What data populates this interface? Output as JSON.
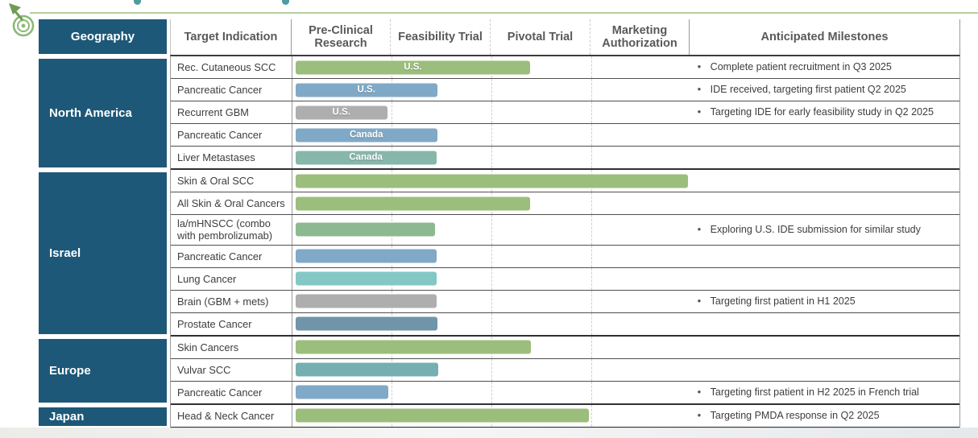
{
  "colors": {
    "navy": "#1d5878",
    "green": "#9cbe7d",
    "sage": "#8cb98f",
    "blue": "#80a9c7",
    "gray": "#aeaeae",
    "turquoise": "#83c8c4",
    "slate": "#7094aa",
    "teal": "#76afb2",
    "seagreen": "#86b7aa",
    "line_green": "#b5cf9f",
    "logo_green": "#8ab877",
    "logo_dark_green": "#6f9c54"
  },
  "milestone_bullet": "•",
  "chart_data": {
    "type": "table",
    "title": "Clinical pipeline by geography (Gantt-style phase table)",
    "columns": [
      "Geography",
      "Target Indication",
      "Pre-Clinical Research",
      "Feasibility Trial",
      "Pivotal Trial",
      "Marketing Authorization",
      "Anticipated Milestones"
    ],
    "phase_scale": [
      "Pre-Clinical Research",
      "Feasibility Trial",
      "Pivotal Trial",
      "Marketing Authorization"
    ],
    "progress_note": "progress is measured in phase units: 0-1 Pre-Clinical, 1-2 Feasibility, 2-3 Pivotal, 3-4 Marketing Authorization",
    "rows": [
      {
        "geography": "North America",
        "indication": "Rec. Cutaneous SCC",
        "bar_label": "U.S.",
        "color": "green",
        "progress": 2.39,
        "milestone": "Complete patient recruitment in Q3 2025"
      },
      {
        "geography": "North America",
        "indication": "Pancreatic Cancer",
        "bar_label": "U.S.",
        "color": "blue",
        "progress": 1.46,
        "milestone": "IDE received, targeting first patient Q2 2025"
      },
      {
        "geography": "North America",
        "indication": "Recurrent GBM",
        "bar_label": "U.S.",
        "color": "gray",
        "progress": 0.96,
        "milestone": "Targeting IDE for early feasibility study in Q2 2025"
      },
      {
        "geography": "North America",
        "indication": "Pancreatic Cancer",
        "bar_label": "Canada",
        "color": "blue",
        "progress": 1.46,
        "milestone": ""
      },
      {
        "geography": "North America",
        "indication": "Liver Metastases",
        "bar_label": "Canada",
        "color": "seagreen",
        "progress": 1.45,
        "milestone": ""
      },
      {
        "geography": "Israel",
        "indication": "Skin & Oral SCC",
        "bar_label": "",
        "color": "green",
        "progress": 3.98,
        "milestone": ""
      },
      {
        "geography": "Israel",
        "indication": "All Skin & Oral Cancers",
        "bar_label": "",
        "color": "green",
        "progress": 2.39,
        "milestone": ""
      },
      {
        "geography": "Israel",
        "indication": "la/mHNSCC (combo with pembrolizumab)",
        "bar_label": "",
        "color": "sage",
        "progress": 1.44,
        "milestone": "Exploring U.S. IDE submission for similar study"
      },
      {
        "geography": "Israel",
        "indication": "Pancreatic Cancer",
        "bar_label": "",
        "color": "blue",
        "progress": 1.45,
        "milestone": ""
      },
      {
        "geography": "Israel",
        "indication": "Lung Cancer",
        "bar_label": "",
        "color": "turquoise",
        "progress": 1.45,
        "milestone": ""
      },
      {
        "geography": "Israel",
        "indication": "Brain (GBM + mets)",
        "bar_label": "",
        "color": "gray",
        "progress": 1.45,
        "milestone": "Targeting first patient in H1 2025"
      },
      {
        "geography": "Israel",
        "indication": "Prostate Cancer",
        "bar_label": "",
        "color": "slate",
        "progress": 1.46,
        "milestone": ""
      },
      {
        "geography": "Europe",
        "indication": "Skin Cancers",
        "bar_label": "",
        "color": "green",
        "progress": 2.4,
        "milestone": ""
      },
      {
        "geography": "Europe",
        "indication": "Vulvar SCC",
        "bar_label": "",
        "color": "teal",
        "progress": 1.47,
        "milestone": ""
      },
      {
        "geography": "Europe",
        "indication": "Pancreatic Cancer",
        "bar_label": "",
        "color": "blue",
        "progress": 0.97,
        "milestone": "Targeting first patient in H2 2025 in French trial"
      },
      {
        "geography": "Japan",
        "indication": "Head & Neck Cancer",
        "bar_label": "",
        "color": "green",
        "progress": 2.98,
        "milestone": "Targeting PMDA response in Q2 2025"
      }
    ]
  }
}
